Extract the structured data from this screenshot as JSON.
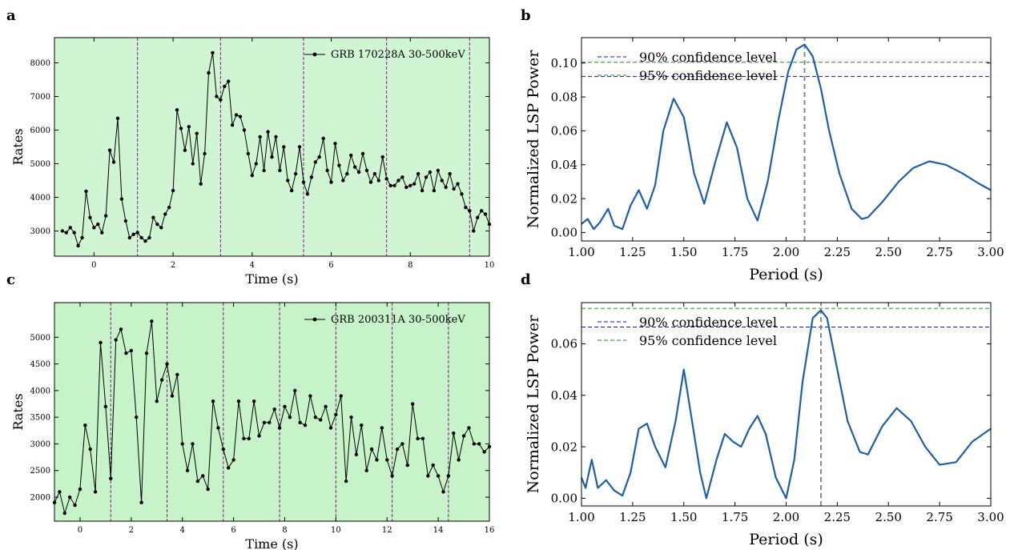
{
  "chart_data": [
    {
      "panel": "a",
      "type": "line",
      "ylabel": "Rates",
      "xlabel": "Time (s)",
      "xlim": [
        -1,
        10
      ],
      "ylim": [
        2250,
        8750
      ],
      "xticks": [
        0,
        2,
        4,
        6,
        8,
        10
      ],
      "yticks": [
        3000,
        4000,
        5000,
        6000,
        7000,
        8000
      ],
      "background": "#d0f5d2",
      "period_lines": [
        1.1,
        3.2,
        5.3,
        7.4,
        9.5
      ],
      "series": [
        {
          "name": "GRB 170228A  30-500keV",
          "color": "#000000",
          "x": [
            -0.8,
            -0.7,
            -0.6,
            -0.5,
            -0.4,
            -0.3,
            -0.2,
            -0.1,
            0.0,
            0.1,
            0.2,
            0.3,
            0.4,
            0.5,
            0.6,
            0.7,
            0.8,
            0.9,
            1.0,
            1.1,
            1.2,
            1.3,
            1.4,
            1.5,
            1.6,
            1.7,
            1.8,
            1.9,
            2.0,
            2.1,
            2.2,
            2.3,
            2.4,
            2.5,
            2.6,
            2.7,
            2.8,
            2.9,
            3.0,
            3.1,
            3.2,
            3.3,
            3.4,
            3.5,
            3.6,
            3.7,
            3.8,
            3.9,
            4.0,
            4.1,
            4.2,
            4.3,
            4.4,
            4.5,
            4.6,
            4.7,
            4.8,
            4.9,
            5.0,
            5.1,
            5.2,
            5.3,
            5.4,
            5.5,
            5.6,
            5.7,
            5.8,
            5.9,
            6.0,
            6.1,
            6.2,
            6.3,
            6.4,
            6.5,
            6.6,
            6.7,
            6.8,
            6.9,
            7.0,
            7.1,
            7.2,
            7.3,
            7.4,
            7.5,
            7.6,
            7.7,
            7.8,
            7.9,
            8.0,
            8.1,
            8.2,
            8.3,
            8.4,
            8.5,
            8.6,
            8.7,
            8.8,
            8.9,
            9.0,
            9.1,
            9.2,
            9.3,
            9.4,
            9.5,
            9.6,
            9.7,
            9.8,
            9.9,
            10.0
          ],
          "y": [
            3000,
            2950,
            3100,
            2950,
            2560,
            2800,
            4180,
            3400,
            3100,
            3200,
            2950,
            3450,
            5400,
            5050,
            6350,
            3950,
            3300,
            2800,
            2900,
            2950,
            2800,
            2700,
            2800,
            3400,
            3200,
            3100,
            3500,
            3700,
            4200,
            6600,
            6050,
            5400,
            6100,
            5000,
            5900,
            4400,
            5300,
            7700,
            8300,
            7000,
            6900,
            7300,
            7450,
            6150,
            6450,
            6400,
            6000,
            5300,
            4650,
            5000,
            5800,
            4800,
            5950,
            5200,
            5800,
            4800,
            5500,
            4500,
            4200,
            4700,
            5500,
            4450,
            4100,
            4600,
            5050,
            5200,
            5750,
            4800,
            4450,
            5600,
            4950,
            4500,
            4700,
            5250,
            4900,
            4750,
            5300,
            4800,
            4450,
            4700,
            4500,
            5200,
            4550,
            4350,
            4350,
            4500,
            4600,
            4300,
            4350,
            4400,
            4700,
            4200,
            4600,
            4750,
            4200,
            4800,
            4500,
            4300,
            4700,
            4250,
            4400,
            4100,
            3700,
            3600,
            3000,
            3400,
            3600,
            3500,
            3200
          ]
        }
      ]
    },
    {
      "panel": "b",
      "type": "line",
      "ylabel": "Normalized LSP Power",
      "xlabel": "Period (s)",
      "xlim": [
        1.0,
        3.0
      ],
      "ylim": [
        -0.005,
        0.115
      ],
      "xticks": [
        1.0,
        1.25,
        1.5,
        1.75,
        2.0,
        2.25,
        2.5,
        2.75,
        3.0
      ],
      "yticks": [
        0.0,
        0.02,
        0.04,
        0.06,
        0.08,
        0.1
      ],
      "peak_period": 2.09,
      "confidence_levels": [
        {
          "name": "90% confidence level",
          "value": 0.092,
          "color": "#1010cc"
        },
        {
          "name": "95% confidence level",
          "value": 0.1005,
          "color": "#1a8c1a"
        }
      ],
      "series": [
        {
          "name": "LSP",
          "color": "#1f5fa6",
          "x": [
            1.0,
            1.03,
            1.06,
            1.09,
            1.13,
            1.16,
            1.2,
            1.24,
            1.28,
            1.32,
            1.36,
            1.4,
            1.45,
            1.5,
            1.55,
            1.6,
            1.65,
            1.71,
            1.76,
            1.81,
            1.86,
            1.91,
            1.96,
            2.01,
            2.05,
            2.09,
            2.13,
            2.17,
            2.21,
            2.26,
            2.32,
            2.37,
            2.4,
            2.47,
            2.55,
            2.62,
            2.7,
            2.78,
            2.86,
            2.94,
            3.0
          ],
          "y": [
            0.005,
            0.008,
            0.002,
            0.006,
            0.014,
            0.004,
            0.002,
            0.016,
            0.025,
            0.014,
            0.028,
            0.06,
            0.079,
            0.068,
            0.035,
            0.017,
            0.04,
            0.065,
            0.05,
            0.02,
            0.007,
            0.03,
            0.065,
            0.095,
            0.108,
            0.111,
            0.104,
            0.085,
            0.06,
            0.035,
            0.014,
            0.008,
            0.009,
            0.018,
            0.03,
            0.038,
            0.042,
            0.04,
            0.035,
            0.029,
            0.025
          ]
        }
      ]
    },
    {
      "panel": "c",
      "type": "line",
      "ylabel": "Rates",
      "xlabel": "Time (s)",
      "xlim": [
        -1,
        16
      ],
      "ylim": [
        1550,
        5650
      ],
      "xticks": [
        0,
        2,
        4,
        6,
        8,
        10,
        12,
        14,
        16
      ],
      "yticks": [
        2000,
        2500,
        3000,
        3500,
        4000,
        4500,
        5000
      ],
      "background": "#c6f3c8",
      "period_lines": [
        1.2,
        3.4,
        5.6,
        7.8,
        10.0,
        12.2,
        14.4
      ],
      "series": [
        {
          "name": "GRB 200311A  30-500keV",
          "color": "#000000",
          "x": [
            -1.0,
            -0.8,
            -0.6,
            -0.4,
            -0.2,
            0.0,
            0.2,
            0.4,
            0.6,
            0.8,
            1.0,
            1.2,
            1.4,
            1.6,
            1.8,
            2.0,
            2.2,
            2.4,
            2.6,
            2.8,
            3.0,
            3.2,
            3.4,
            3.6,
            3.8,
            4.0,
            4.2,
            4.4,
            4.6,
            4.8,
            5.0,
            5.2,
            5.4,
            5.6,
            5.8,
            6.0,
            6.2,
            6.4,
            6.6,
            6.8,
            7.0,
            7.2,
            7.4,
            7.6,
            7.8,
            8.0,
            8.2,
            8.4,
            8.6,
            8.8,
            9.0,
            9.2,
            9.4,
            9.6,
            9.8,
            10.0,
            10.2,
            10.4,
            10.6,
            10.8,
            11.0,
            11.2,
            11.4,
            11.6,
            11.8,
            12.0,
            12.2,
            12.4,
            12.6,
            12.8,
            13.0,
            13.2,
            13.4,
            13.6,
            13.8,
            14.0,
            14.2,
            14.4,
            14.6,
            14.8,
            15.0,
            15.2,
            15.4,
            15.6,
            15.8,
            16.0
          ],
          "y": [
            1900,
            2100,
            1700,
            2000,
            1850,
            2150,
            3350,
            2900,
            2100,
            4900,
            3700,
            2350,
            4950,
            5150,
            4700,
            4750,
            3500,
            1900,
            4700,
            5300,
            3800,
            4200,
            4500,
            3900,
            4300,
            3000,
            2500,
            3000,
            2300,
            2400,
            2150,
            3800,
            3300,
            2900,
            2550,
            2700,
            3800,
            3100,
            3100,
            3800,
            3150,
            3400,
            3400,
            3650,
            3300,
            3700,
            3500,
            4000,
            3400,
            3350,
            3900,
            3500,
            3450,
            3700,
            3300,
            3550,
            3900,
            2300,
            3500,
            2800,
            3350,
            2500,
            2900,
            2700,
            3300,
            2700,
            2400,
            2900,
            3000,
            2600,
            3750,
            3100,
            3100,
            2400,
            2600,
            2400,
            2100,
            2400,
            3200,
            2700,
            3150,
            3300,
            3000,
            3000,
            2850,
            2950
          ]
        }
      ]
    },
    {
      "panel": "d",
      "type": "line",
      "ylabel": "Normalized LSP Power",
      "xlabel": "Period (s)",
      "xlim": [
        1.0,
        3.0
      ],
      "ylim": [
        -0.003,
        0.076
      ],
      "xticks": [
        1.0,
        1.25,
        1.5,
        1.75,
        2.0,
        2.25,
        2.5,
        2.75,
        3.0
      ],
      "yticks": [
        0.0,
        0.02,
        0.04,
        0.06
      ],
      "peak_period": 2.17,
      "confidence_levels": [
        {
          "name": "90% confidence level",
          "value": 0.0665,
          "color": "#1010cc"
        },
        {
          "name": "95% confidence level",
          "value": 0.0738,
          "color": "#1a8c1a"
        }
      ],
      "series": [
        {
          "name": "LSP",
          "color": "#1f5fa6",
          "x": [
            1.0,
            1.02,
            1.05,
            1.08,
            1.12,
            1.16,
            1.2,
            1.24,
            1.28,
            1.32,
            1.36,
            1.41,
            1.46,
            1.5,
            1.54,
            1.58,
            1.61,
            1.66,
            1.7,
            1.74,
            1.78,
            1.82,
            1.86,
            1.9,
            1.95,
            2.0,
            2.04,
            2.08,
            2.13,
            2.17,
            2.2,
            2.25,
            2.3,
            2.36,
            2.4,
            2.47,
            2.54,
            2.61,
            2.68,
            2.75,
            2.83,
            2.91,
            3.0
          ],
          "y": [
            0.008,
            0.004,
            0.015,
            0.004,
            0.007,
            0.003,
            0.001,
            0.01,
            0.027,
            0.029,
            0.02,
            0.012,
            0.03,
            0.05,
            0.03,
            0.01,
            0.0,
            0.015,
            0.025,
            0.022,
            0.02,
            0.027,
            0.032,
            0.025,
            0.008,
            0.0,
            0.015,
            0.045,
            0.07,
            0.073,
            0.07,
            0.05,
            0.03,
            0.018,
            0.017,
            0.028,
            0.035,
            0.03,
            0.02,
            0.013,
            0.014,
            0.022,
            0.027
          ]
        }
      ]
    }
  ]
}
